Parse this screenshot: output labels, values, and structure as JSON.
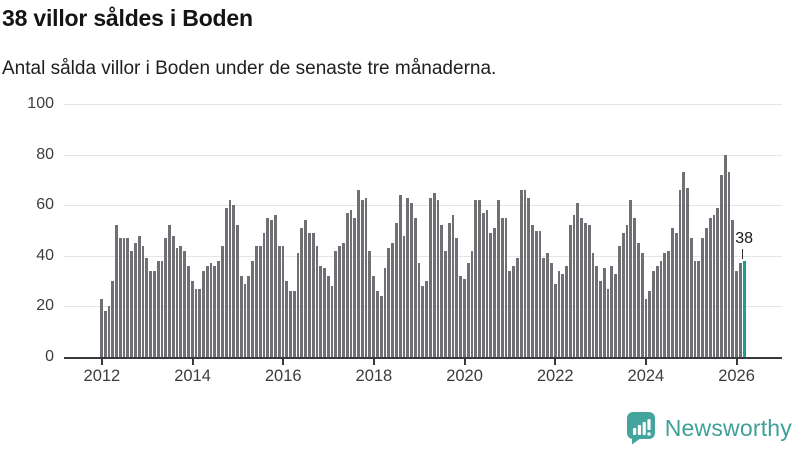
{
  "title": "38 villor såldes i Boden",
  "subtitle": "Antal sålda villor i Boden under de senaste tre månaderna.",
  "annotation": {
    "label": "38"
  },
  "logo": {
    "text": "Newsworthy"
  },
  "colors": {
    "bar": "#6f6f74",
    "highlight": "#18a096",
    "grid": "#e4e4e4",
    "axis_line": "#3a393f",
    "axis_text": "#3d3d3d",
    "logo": "#45a59e"
  },
  "chart_data": {
    "type": "bar",
    "title": "38 villor såldes i Boden",
    "subtitle": "Antal sålda villor i Boden under de senaste tre månaderna.",
    "xlabel": "",
    "ylabel": "",
    "ylim": [
      0,
      100
    ],
    "yticks": [
      0,
      20,
      40,
      60,
      80,
      100
    ],
    "xticks": [
      2012,
      2014,
      2016,
      2018,
      2020,
      2022,
      2024,
      2026
    ],
    "start_year": 2012,
    "frequency": "monthly",
    "grid": true,
    "values": [
      23,
      18,
      20,
      30,
      52,
      47,
      47,
      47,
      42,
      45,
      48,
      44,
      39,
      34,
      34,
      38,
      38,
      47,
      52,
      48,
      43,
      44,
      42,
      36,
      30,
      27,
      27,
      34,
      36,
      37,
      36,
      38,
      44,
      59,
      62,
      60,
      52,
      32,
      29,
      32,
      38,
      44,
      44,
      49,
      55,
      54,
      56,
      44,
      44,
      30,
      26,
      26,
      41,
      51,
      54,
      49,
      49,
      44,
      36,
      35,
      32,
      28,
      42,
      44,
      45,
      57,
      58,
      55,
      66,
      62,
      63,
      42,
      32,
      26,
      24,
      35,
      43,
      45,
      53,
      64,
      48,
      63,
      61,
      55,
      37,
      28,
      30,
      63,
      65,
      62,
      52,
      42,
      53,
      56,
      47,
      32,
      31,
      37,
      42,
      62,
      62,
      57,
      58,
      49,
      51,
      62,
      55,
      55,
      34,
      36,
      39,
      66,
      66,
      63,
      52,
      50,
      50,
      39,
      41,
      37,
      29,
      34,
      33,
      36,
      52,
      56,
      61,
      55,
      53,
      52,
      41,
      36,
      30,
      35,
      27,
      36,
      33,
      44,
      49,
      52,
      62,
      55,
      45,
      41,
      23,
      26,
      34,
      36,
      38,
      41,
      42,
      51,
      49,
      66,
      73,
      67,
      47,
      38,
      38,
      47,
      51,
      55,
      56,
      59,
      72,
      80,
      73,
      54,
      34,
      37,
      38
    ],
    "highlight_index": 170,
    "highlight_value": 38
  }
}
